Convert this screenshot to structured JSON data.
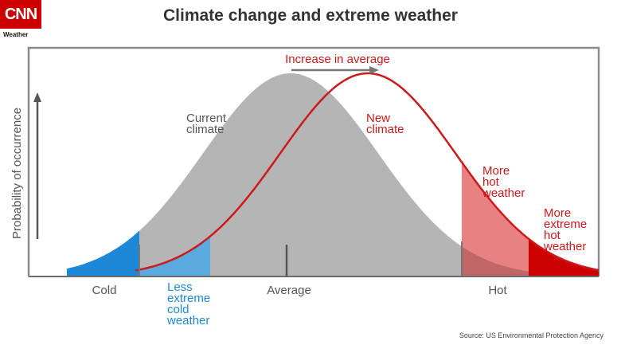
{
  "logo": {
    "brand": "CNN",
    "section": "Weather"
  },
  "title": "Climate change and extreme weather",
  "source": "Source: US Environmental Protection Agency",
  "y_axis_label": "Probability of occurrence",
  "x_labels": {
    "cold": "Cold",
    "average": "Average",
    "hot": "Hot"
  },
  "labels": {
    "increase": "Increase in average",
    "current": [
      "Current",
      "climate"
    ],
    "new": [
      "New",
      "climate"
    ],
    "less_cold": [
      "Less",
      "extreme",
      "cold",
      "weather"
    ],
    "more_hot": [
      "More",
      "hot",
      "weather"
    ],
    "more_extreme_hot": [
      "More",
      "extreme",
      "hot",
      "weather"
    ]
  },
  "colors": {
    "current_fill": "#b5b5b5",
    "new_line": "#cc1a1a",
    "cold_extreme": "#1e88d8",
    "less_cold": "#5aa9df",
    "more_hot": "#e88282",
    "more_extreme_hot": "#cc0000",
    "label_blue": "#1e88d8",
    "label_red": "#cc1a1a",
    "label_gray": "#555555"
  }
}
